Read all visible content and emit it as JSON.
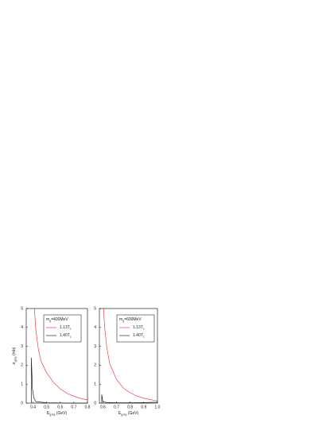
{
  "chart_data": [
    {
      "type": "line",
      "x_label": [
        "E",
        "gJ/ψ",
        " (GeV)"
      ],
      "y_label": [
        "σ",
        "gJ/ψ",
        " (mb)"
      ],
      "legend_title": [
        "m",
        "g",
        "=400MeV"
      ],
      "xlim": [
        0.35,
        0.8
      ],
      "xticks": [
        0.4,
        0.5,
        0.6,
        0.7,
        0.8
      ],
      "ylim": [
        0,
        5
      ],
      "yticks": [
        0,
        1,
        2,
        3,
        4,
        5
      ],
      "series": [
        {
          "name": "1.13T",
          "name_sub": "c",
          "color": "#e8262a",
          "x": [
            0.41,
            0.42,
            0.44,
            0.46,
            0.5,
            0.55,
            0.6,
            0.65,
            0.7,
            0.75,
            0.8
          ],
          "values": [
            5,
            3.9,
            2.8,
            2.2,
            1.6,
            1.1,
            0.75,
            0.52,
            0.37,
            0.25,
            0.17
          ]
        },
        {
          "name": "1.40T",
          "name_sub": "c",
          "color": "#000000",
          "x": [
            0.388,
            0.388,
            0.395,
            0.405,
            0.42,
            0.5,
            0.6,
            0.7,
            0.8
          ],
          "values": [
            0,
            2.4,
            0.8,
            0.3,
            0.08,
            0.02,
            0.01,
            0,
            0
          ]
        }
      ]
    },
    {
      "type": "line",
      "x_label": [
        "E",
        "gJ/ψ",
        " (GeV)"
      ],
      "legend_title": [
        "m",
        "g",
        "=600MeV"
      ],
      "xlim": [
        0.575,
        1.0
      ],
      "xticks": [
        0.6,
        0.7,
        0.8,
        0.9,
        {
          "value": 1.0,
          "label": "1.0"
        }
      ],
      "ylim": [
        0,
        5
      ],
      "yticks": [
        0,
        1,
        2,
        3,
        4,
        5
      ],
      "series": [
        {
          "name": "1.13T",
          "name_sub": "c",
          "color": "#e8262a",
          "x": [
            0.605,
            0.615,
            0.63,
            0.65,
            0.7,
            0.75,
            0.8,
            0.85,
            0.9,
            0.95,
            1.0
          ],
          "values": [
            5,
            3.9,
            2.9,
            2.1,
            1.25,
            0.8,
            0.55,
            0.38,
            0.26,
            0.18,
            0.12
          ]
        },
        {
          "name": "1.40T",
          "name_sub": "c",
          "color": "#000000",
          "x": [
            0.592,
            0.592,
            0.6,
            0.62,
            0.7,
            0.8,
            0.9,
            1.0
          ],
          "values": [
            0,
            0.45,
            0.1,
            0.04,
            0.02,
            0.02,
            0.03,
            0.05
          ]
        }
      ]
    }
  ]
}
